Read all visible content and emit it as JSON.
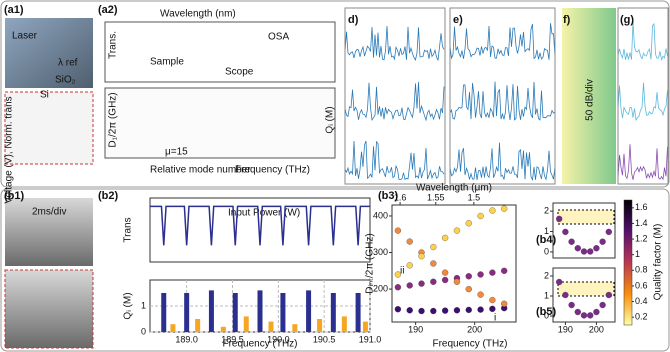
{
  "panel_labels": [
    "(a1)",
    "(a2)",
    "d)",
    "e)",
    "f)",
    "(g)",
    "(b1)",
    "(b2)",
    "(b3)",
    "(b4)",
    "(b5)"
  ],
  "top_texts": [
    "Laser",
    "λ ref",
    "SiO₂",
    "Si",
    "Wavelength (nm)",
    "OSA",
    "Sample",
    "Scope",
    "Trans.",
    "D₁/2π (GHz)",
    "Qᵢ (M)",
    "μ=15",
    "Relative mode number",
    "Frequency (THz)",
    "50 dB/div",
    "Voltage (V), Norm. trans",
    "2ms/div",
    "Input Power (W)"
  ],
  "colorbar": {
    "label": "Quality factor (M)",
    "lim": [
      0.1,
      1.7
    ],
    "ticks": [
      0.2,
      0.4,
      0.6,
      0.8,
      1,
      1.2,
      1.4,
      1.6
    ],
    "colors": [
      "#fcffa4",
      "#f98e09",
      "#bc3754",
      "#57106e",
      "#000004"
    ]
  },
  "chart_data": [
    {
      "type": "line",
      "ylabel": "Trans",
      "color": "#2b2f8f",
      "x": [
        188.6,
        188.725,
        188.75,
        188.775,
        188.975,
        189.0,
        189.025,
        189.245,
        189.27,
        189.295,
        189.505,
        189.53,
        189.555,
        189.775,
        189.8,
        189.825,
        190.025,
        190.05,
        190.075,
        190.305,
        190.33,
        190.355,
        190.575,
        190.6,
        190.625,
        190.845,
        190.87,
        190.895,
        191.0
      ],
      "values": [
        1.0,
        1.0,
        0.3,
        1.0,
        1.0,
        0.3,
        1.0,
        1.0,
        0.3,
        1.0,
        1.0,
        0.3,
        1.0,
        1.0,
        0.3,
        1.0,
        1.0,
        0.3,
        1.0,
        1.0,
        0.3,
        1.0,
        1.0,
        0.3,
        1.0,
        1.0,
        0.3,
        1.0,
        1.0
      ],
      "xlim": [
        188.6,
        191
      ],
      "ylim": [
        0,
        1.15
      ]
    },
    {
      "type": "bar",
      "ylabel": "Qᵢ (M)",
      "xlabel": "Frequency (THz)",
      "series": [
        {
          "color": "#2b2f8f",
          "x": [
            188.75,
            189.0,
            189.27,
            189.53,
            189.8,
            190.05,
            190.33,
            190.6,
            190.87
          ],
          "values": [
            1.5,
            1.5,
            1.6,
            1.5,
            1.6,
            1.5,
            1.6,
            1.5,
            1.5
          ]
        },
        {
          "color": "#f5a623",
          "x": [
            188.85,
            189.12,
            189.4,
            189.65,
            189.92,
            190.18,
            190.45,
            190.72,
            190.95
          ],
          "values": [
            0.3,
            0.5,
            0.2,
            0.6,
            0.4,
            0.3,
            0.5,
            0.6,
            0.4
          ]
        }
      ],
      "xlim": [
        188.6,
        191
      ],
      "ylim": [
        0,
        2
      ],
      "yticks": [
        0,
        1
      ],
      "xticks": [
        {
          "value": 189,
          "label": "189.0"
        },
        {
          "value": 189.5,
          "label": "189.5"
        },
        {
          "value": 190,
          "label": "190.0"
        },
        {
          "value": 190.5,
          "label": "190.5"
        },
        {
          "value": 191,
          "label": "191.0"
        }
      ],
      "grid": true
    },
    {
      "type": "scatter",
      "xlabel": "Frequency (THz)",
      "ylabel": "Dᵢₙₜ/2π (GHz)",
      "x2label": "Wavelength (μm)",
      "x2ticks": [
        1.6,
        1.55,
        1.5
      ],
      "annotations": [
        "ii",
        "i"
      ],
      "series": [
        {
          "color": "#3b0f70",
          "x": [
            187,
            189,
            191,
            193,
            195,
            197,
            199,
            201,
            203,
            205
          ],
          "values": [
            145,
            142,
            140,
            140,
            141,
            142,
            143,
            144,
            146,
            148
          ]
        },
        {
          "color": "#8c2981",
          "x": [
            187,
            189,
            191,
            193,
            195,
            197,
            199,
            201,
            203,
            205
          ],
          "values": [
            205,
            210,
            215,
            220,
            225,
            230,
            235,
            240,
            245,
            250
          ]
        },
        {
          "color": "#f08a3e",
          "x": [
            187,
            189,
            191,
            193,
            195,
            197,
            199,
            201,
            203,
            205
          ],
          "values": [
            360,
            330,
            300,
            270,
            245,
            220,
            200,
            185,
            170,
            160
          ]
        },
        {
          "color": "#fcd24d",
          "x": [
            187,
            189,
            191,
            193,
            195,
            197,
            199,
            201,
            203,
            205
          ],
          "values": [
            240,
            265,
            290,
            315,
            340,
            360,
            380,
            400,
            415,
            420
          ]
        }
      ],
      "xlim": [
        186,
        207
      ],
      "ylim": [
        110,
        430
      ],
      "xticks": [
        190,
        200
      ],
      "yticks": [
        200,
        300,
        400
      ]
    },
    {
      "type": "scatter",
      "series": [
        {
          "color": "#7b2a8c",
          "x": [
            188,
            190,
            192,
            194,
            196,
            198,
            200,
            202,
            204
          ],
          "values": [
            1.62,
            0.98,
            0.5,
            0.18,
            0.02,
            0.02,
            0.18,
            0.5,
            0.98
          ]
        }
      ],
      "xlim": [
        186,
        206
      ],
      "ylim": [
        -0.3,
        2.4
      ],
      "yticks": [
        0,
        1,
        2
      ]
    },
    {
      "type": "scatter",
      "series": [
        {
          "color": "#7b2a8c",
          "x": [
            188,
            190,
            192,
            194,
            196,
            198,
            200,
            202,
            204
          ],
          "values": [
            1.7,
            1.05,
            0.55,
            0.2,
            0.03,
            0.03,
            0.2,
            0.55,
            1.05
          ]
        }
      ],
      "xlim": [
        186,
        206
      ],
      "ylim": [
        -0.3,
        2.4
      ],
      "yticks": [
        0,
        1,
        2
      ],
      "xticks": [
        190,
        200
      ]
    }
  ]
}
